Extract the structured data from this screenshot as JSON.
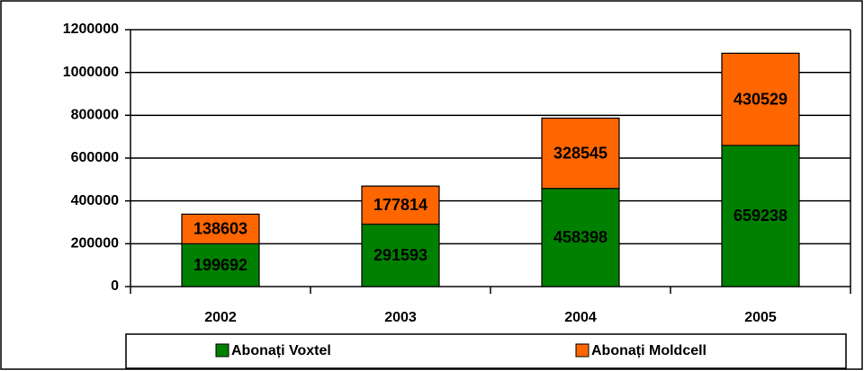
{
  "chart_data": {
    "type": "stacked_bar",
    "categories": [
      "2002",
      "2003",
      "2004",
      "2005"
    ],
    "series": [
      {
        "name": "Abonați Voxtel",
        "color": "#008000",
        "values": [
          199692,
          291593,
          458398,
          659238
        ]
      },
      {
        "name": "Abonați Moldcell",
        "color": "#ff6600",
        "values": [
          138603,
          177814,
          328545,
          430529
        ]
      }
    ],
    "ylim": [
      0,
      1200000
    ],
    "yticks": [
      0,
      200000,
      400000,
      600000,
      800000,
      1000000,
      1200000
    ],
    "grid": true,
    "legend": "bottom"
  }
}
